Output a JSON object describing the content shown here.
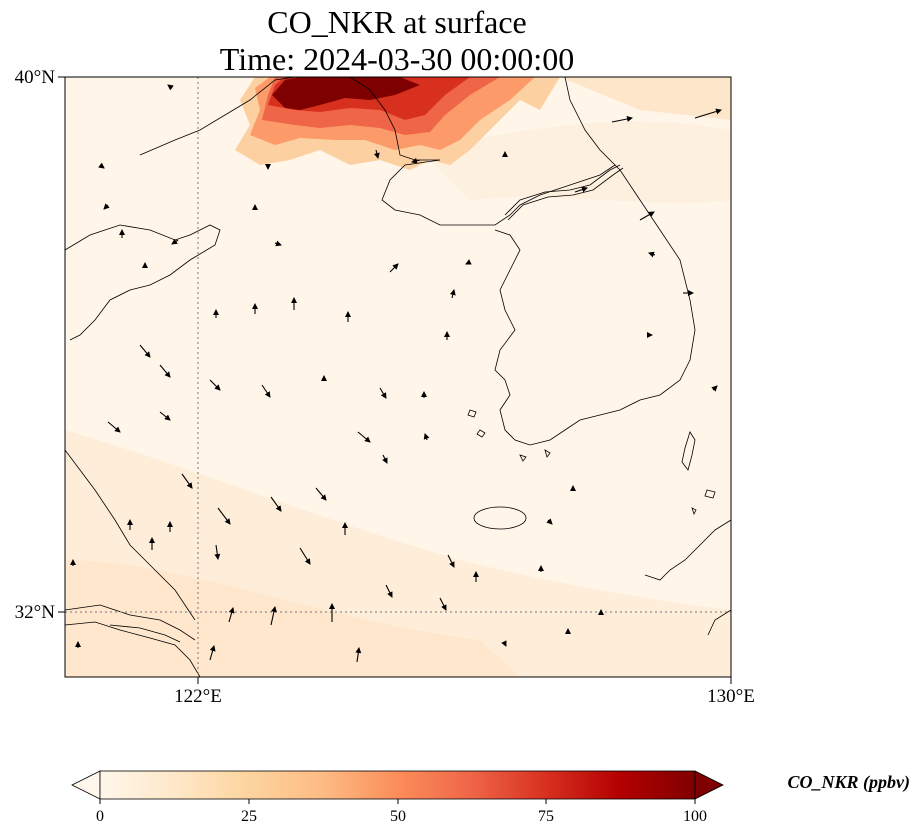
{
  "title": {
    "line1": "CO_NKR at surface",
    "line2": "Time: 2024-03-30 00:00:00"
  },
  "axes": {
    "lat_labels": [
      "40°N",
      "32°N"
    ],
    "lon_labels": [
      "122°E",
      "130°E"
    ],
    "lon_range": [
      120,
      130
    ],
    "lat_range": [
      31,
      40
    ],
    "gridlines_lon": [
      122
    ],
    "gridlines_lat": [
      32
    ]
  },
  "colorbar": {
    "label": "CO_NKR (ppbv)",
    "ticks": [
      "0",
      "25",
      "50",
      "75",
      "100"
    ],
    "range": [
      0,
      100
    ],
    "colormap": "OrRd",
    "extend": "both"
  },
  "colors": {
    "background_field": "#fff5e8",
    "plume_dark": "#7f0000",
    "plume_mid": "#d7301f",
    "plume_light": "#fc8d59"
  },
  "features": {
    "field": "CO concentration",
    "wind_vectors": "black arrows"
  }
}
